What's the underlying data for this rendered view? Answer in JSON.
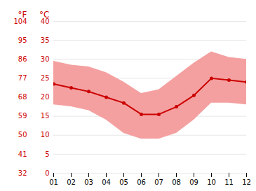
{
  "chart_data": {
    "type": "line",
    "x": [
      1,
      2,
      3,
      4,
      5,
      6,
      7,
      8,
      9,
      10,
      11,
      12
    ],
    "series": [
      {
        "type": "area",
        "color": "#f4a0a0",
        "low": [
          18.0,
          17.5,
          16.5,
          14.0,
          10.5,
          9.0,
          9.0,
          10.5,
          14.0,
          18.5,
          18.5,
          18.0
        ],
        "high": [
          29.5,
          28.5,
          28.0,
          26.5,
          24.0,
          21.0,
          22.0,
          25.5,
          29.0,
          32.0,
          30.5,
          30.0
        ]
      },
      {
        "type": "line",
        "marker": "circle",
        "color": "#cc0000",
        "values": [
          23.5,
          22.5,
          21.5,
          20.0,
          18.5,
          15.5,
          15.5,
          17.5,
          20.5,
          25.0,
          24.5,
          24.0
        ]
      }
    ],
    "xlim": [
      1,
      12
    ],
    "xticks": [
      {
        "value": 1,
        "label": "01"
      },
      {
        "value": 2,
        "label": "02"
      },
      {
        "value": 3,
        "label": "03"
      },
      {
        "value": 4,
        "label": "04"
      },
      {
        "value": 5,
        "label": "05"
      },
      {
        "value": 6,
        "label": "06"
      },
      {
        "value": 7,
        "label": "07"
      },
      {
        "value": 8,
        "label": "08"
      },
      {
        "value": 9,
        "label": "09"
      },
      {
        "value": 10,
        "label": "10"
      },
      {
        "value": 11,
        "label": "11"
      },
      {
        "value": 12,
        "label": "12"
      }
    ],
    "ylim": [
      0,
      40
    ],
    "yticks": [
      0,
      5,
      10,
      15,
      20,
      25,
      30,
      35,
      40
    ],
    "ylabel": "°C",
    "y2lim": [
      32,
      104
    ],
    "y2ticks": [
      32,
      41,
      50,
      59,
      68,
      77,
      86,
      95,
      104
    ],
    "y2label": "°F",
    "grid": true
  }
}
